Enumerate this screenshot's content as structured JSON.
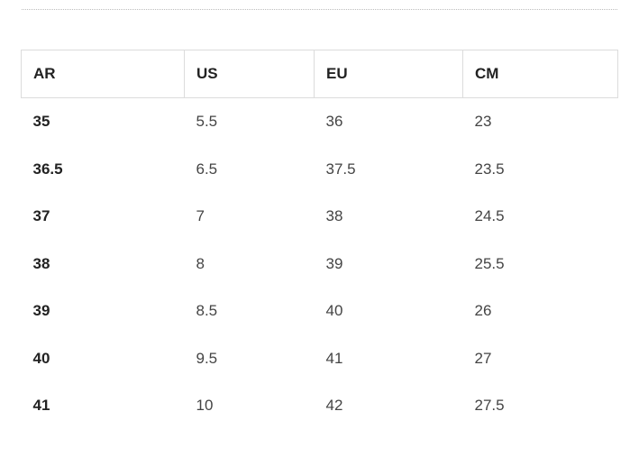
{
  "size_chart": {
    "headers": [
      "AR",
      "US",
      "EU",
      "CM"
    ],
    "rows": [
      [
        "35",
        "5.5",
        "36",
        "23"
      ],
      [
        "36.5",
        "6.5",
        "37.5",
        "23.5"
      ],
      [
        "37",
        "7",
        "38",
        "24.5"
      ],
      [
        "38",
        "8",
        "39",
        "25.5"
      ],
      [
        "39",
        "8.5",
        "40",
        "26"
      ],
      [
        "40",
        "9.5",
        "41",
        "27"
      ],
      [
        "41",
        "10",
        "42",
        "27.5"
      ]
    ]
  }
}
